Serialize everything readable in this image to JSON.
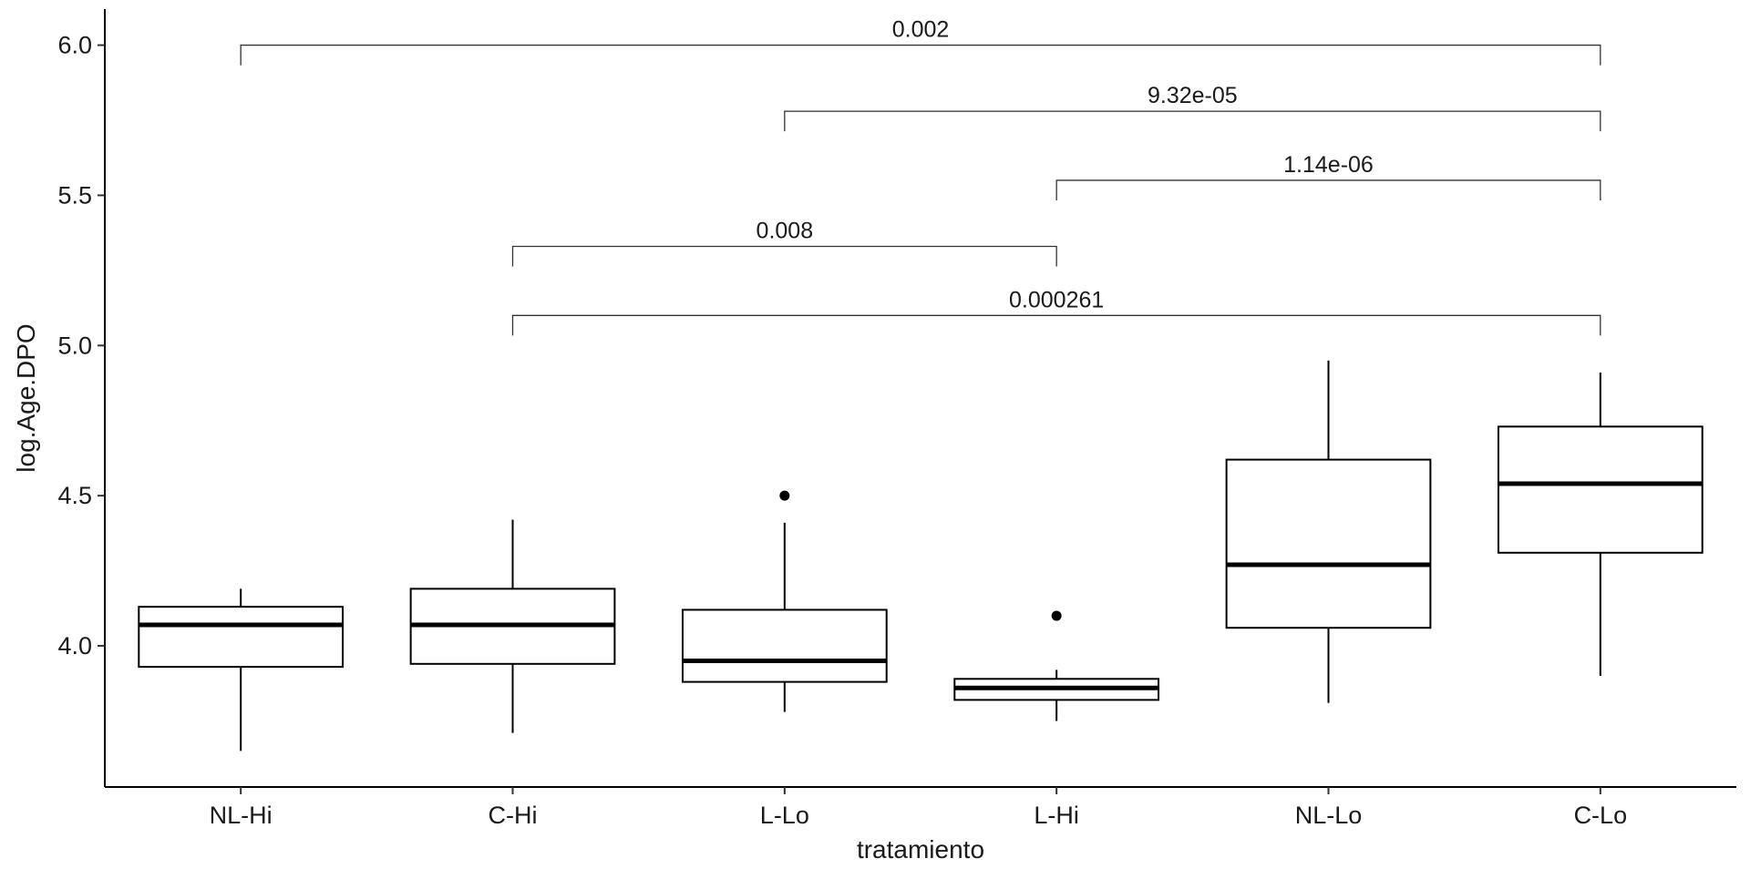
{
  "chart_data": {
    "type": "box",
    "title": "",
    "xlabel": "tratamiento",
    "ylabel": "log.Age.DPO",
    "categories": [
      "NL-Hi",
      "C-Hi",
      "L-Lo",
      "L-Hi",
      "NL-Lo",
      "C-Lo"
    ],
    "ylim": [
      3.53,
      6.12
    ],
    "yticks": [
      4.0,
      4.5,
      5.0,
      5.5,
      6.0
    ],
    "ytick_labels": [
      "4.0",
      "4.5",
      "5.0",
      "5.5",
      "6.0"
    ],
    "boxes": [
      {
        "category": "NL-Hi",
        "whisker_low": 3.65,
        "q1": 3.93,
        "median": 4.07,
        "q3": 4.13,
        "whisker_high": 4.19,
        "outliers": []
      },
      {
        "category": "C-Hi",
        "whisker_low": 3.71,
        "q1": 3.94,
        "median": 4.07,
        "q3": 4.19,
        "whisker_high": 4.42,
        "outliers": []
      },
      {
        "category": "L-Lo",
        "whisker_low": 3.78,
        "q1": 3.88,
        "median": 3.95,
        "q3": 4.12,
        "whisker_high": 4.41,
        "outliers": [
          4.5
        ]
      },
      {
        "category": "L-Hi",
        "whisker_low": 3.75,
        "q1": 3.82,
        "median": 3.86,
        "q3": 3.89,
        "whisker_high": 3.92,
        "outliers": [
          4.1
        ]
      },
      {
        "category": "NL-Lo",
        "whisker_low": 3.81,
        "q1": 4.06,
        "median": 4.27,
        "q3": 4.62,
        "whisker_high": 4.95,
        "outliers": []
      },
      {
        "category": "C-Lo",
        "whisker_low": 3.9,
        "q1": 4.31,
        "median": 4.54,
        "q3": 4.73,
        "whisker_high": 4.91,
        "outliers": []
      }
    ],
    "comparisons": [
      {
        "from": "NL-Hi",
        "to": "C-Lo",
        "y": 6.0,
        "label": "0.002"
      },
      {
        "from": "L-Lo",
        "to": "C-Lo",
        "y": 5.78,
        "label": "9.32e-05"
      },
      {
        "from": "L-Hi",
        "to": "C-Lo",
        "y": 5.55,
        "label": "1.14e-06"
      },
      {
        "from": "C-Hi",
        "to": "L-Hi",
        "y": 5.33,
        "label": "0.008"
      },
      {
        "from": "C-Hi",
        "to": "C-Lo",
        "y": 5.1,
        "label": "0.000261"
      }
    ],
    "grid": false,
    "legend": "none"
  }
}
